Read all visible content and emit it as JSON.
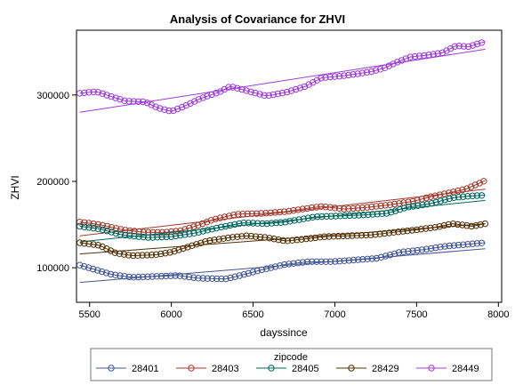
{
  "chart_data": {
    "type": "scatter",
    "title": "Analysis of Covariance for ZHVI",
    "xlabel": "dayssince",
    "ylabel": "ZHVI",
    "xlim": [
      5420,
      8020
    ],
    "ylim": [
      60000,
      375000
    ],
    "x_ticks": [
      5500,
      6000,
      6500,
      7000,
      7500,
      8000
    ],
    "y_ticks": [
      100000,
      200000,
      300000
    ],
    "x_tick_labels": [
      "5500",
      "6000",
      "6500",
      "7000",
      "7500",
      "8000"
    ],
    "y_tick_labels": [
      "100000",
      "200000",
      "300000"
    ],
    "grid": false,
    "legend_title": "zipcode",
    "legend_position": "bottom",
    "series": [
      {
        "name": "28401",
        "color": "#445694",
        "points": [
          [
            5440,
            103000
          ],
          [
            5640,
            92000
          ],
          [
            5760,
            89000
          ],
          [
            5900,
            90000
          ],
          [
            6040,
            91000
          ],
          [
            6160,
            88000
          ],
          [
            6330,
            87000
          ],
          [
            6420,
            91000
          ],
          [
            6560,
            98000
          ],
          [
            6700,
            104000
          ],
          [
            6840,
            107000
          ],
          [
            6980,
            107000
          ],
          [
            7120,
            109000
          ],
          [
            7260,
            111000
          ],
          [
            7400,
            118000
          ],
          [
            7540,
            121000
          ],
          [
            7680,
            125000
          ],
          [
            7800,
            127000
          ],
          [
            7920,
            129000
          ]
        ],
        "fit": [
          [
            5440,
            83000
          ],
          [
            7920,
            122000
          ]
        ]
      },
      {
        "name": "28403",
        "color": "#A23A2E",
        "points": [
          [
            5440,
            153000
          ],
          [
            5560,
            150000
          ],
          [
            5700,
            144000
          ],
          [
            5840,
            141000
          ],
          [
            5960,
            141000
          ],
          [
            6060,
            143000
          ],
          [
            6160,
            149000
          ],
          [
            6260,
            156000
          ],
          [
            6400,
            162000
          ],
          [
            6560,
            163000
          ],
          [
            6700,
            165000
          ],
          [
            6840,
            169000
          ],
          [
            6920,
            171000
          ],
          [
            7060,
            168000
          ],
          [
            7200,
            170000
          ],
          [
            7340,
            173000
          ],
          [
            7480,
            177000
          ],
          [
            7580,
            182000
          ],
          [
            7680,
            186000
          ],
          [
            7800,
            191000
          ],
          [
            7920,
            201000
          ]
        ],
        "fit": [
          [
            5440,
            137000
          ],
          [
            7920,
            191000
          ]
        ]
      },
      {
        "name": "28405",
        "color": "#01665E",
        "points": [
          [
            5440,
            148000
          ],
          [
            5560,
            145000
          ],
          [
            5700,
            138000
          ],
          [
            5860,
            135000
          ],
          [
            6000,
            136000
          ],
          [
            6140,
            140000
          ],
          [
            6300,
            147000
          ],
          [
            6440,
            152000
          ],
          [
            6580,
            151000
          ],
          [
            6700,
            153000
          ],
          [
            6880,
            159000
          ],
          [
            7020,
            160000
          ],
          [
            7160,
            161000
          ],
          [
            7320,
            163000
          ],
          [
            7440,
            170000
          ],
          [
            7580,
            174000
          ],
          [
            7720,
            181000
          ],
          [
            7820,
            183000
          ],
          [
            7920,
            184000
          ]
        ],
        "fit": [
          [
            5440,
            130000
          ],
          [
            7920,
            178000
          ]
        ]
      },
      {
        "name": "28429",
        "color": "#543005",
        "points": [
          [
            5440,
            129000
          ],
          [
            5560,
            126000
          ],
          [
            5660,
            117000
          ],
          [
            5760,
            114000
          ],
          [
            5900,
            115000
          ],
          [
            6000,
            118000
          ],
          [
            6100,
            124000
          ],
          [
            6220,
            131000
          ],
          [
            6360,
            135000
          ],
          [
            6460,
            137000
          ],
          [
            6580,
            135000
          ],
          [
            6700,
            131000
          ],
          [
            6800,
            133000
          ],
          [
            6940,
            136000
          ],
          [
            7080,
            137000
          ],
          [
            7220,
            138000
          ],
          [
            7360,
            141000
          ],
          [
            7500,
            144000
          ],
          [
            7620,
            147000
          ],
          [
            7720,
            151000
          ],
          [
            7840,
            148000
          ],
          [
            7920,
            151000
          ]
        ],
        "fit": [
          [
            5440,
            116000
          ],
          [
            7920,
            151000
          ]
        ]
      },
      {
        "name": "28449",
        "color": "#9D3CDB",
        "points": [
          [
            5440,
            302000
          ],
          [
            5540,
            304000
          ],
          [
            5620,
            299000
          ],
          [
            5720,
            293000
          ],
          [
            5840,
            292000
          ],
          [
            5920,
            285000
          ],
          [
            6000,
            281000
          ],
          [
            6080,
            287000
          ],
          [
            6180,
            296000
          ],
          [
            6300,
            304000
          ],
          [
            6360,
            310000
          ],
          [
            6460,
            305000
          ],
          [
            6580,
            299000
          ],
          [
            6700,
            303000
          ],
          [
            6820,
            310000
          ],
          [
            6920,
            320000
          ],
          [
            7040,
            322000
          ],
          [
            7120,
            324000
          ],
          [
            7220,
            327000
          ],
          [
            7300,
            331000
          ],
          [
            7380,
            338000
          ],
          [
            7460,
            344000
          ],
          [
            7560,
            346000
          ],
          [
            7660,
            349000
          ],
          [
            7740,
            357000
          ],
          [
            7820,
            356000
          ],
          [
            7920,
            362000
          ]
        ],
        "fit": [
          [
            5440,
            280000
          ],
          [
            7920,
            353000
          ]
        ]
      }
    ]
  }
}
